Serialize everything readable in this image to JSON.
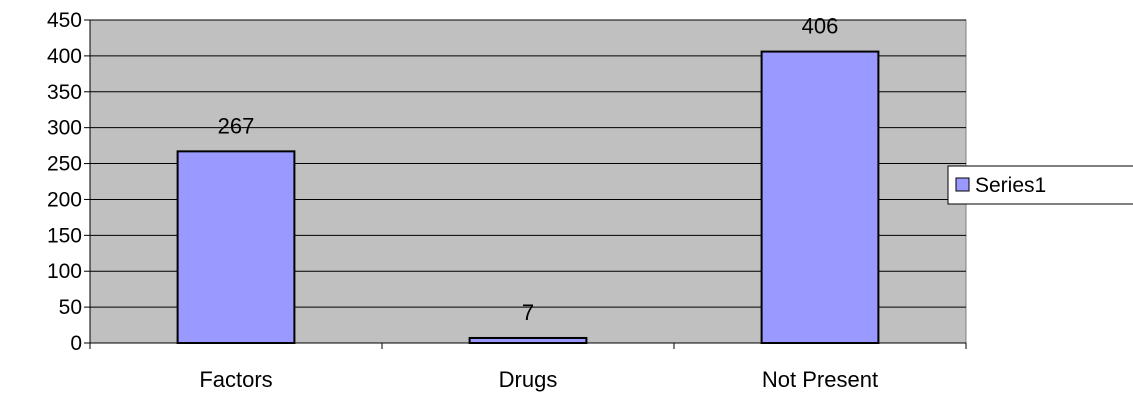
{
  "chart_data": {
    "type": "bar",
    "categories": [
      "Factors",
      "Drugs",
      "Not Present"
    ],
    "series": [
      {
        "name": "Series1",
        "values": [
          267,
          7,
          406
        ],
        "color": "#9999ff"
      }
    ],
    "data_labels": [
      "267",
      "7",
      "406"
    ],
    "ylim": [
      0,
      450
    ],
    "yticks": [
      0,
      50,
      100,
      150,
      200,
      250,
      300,
      350,
      400,
      450
    ],
    "grid": true,
    "legend_position": "right",
    "plot_background": "#c0c0c0",
    "bar_border": "#000000",
    "title": "",
    "xlabel": "",
    "ylabel": ""
  },
  "legend": {
    "label": "Series1"
  }
}
